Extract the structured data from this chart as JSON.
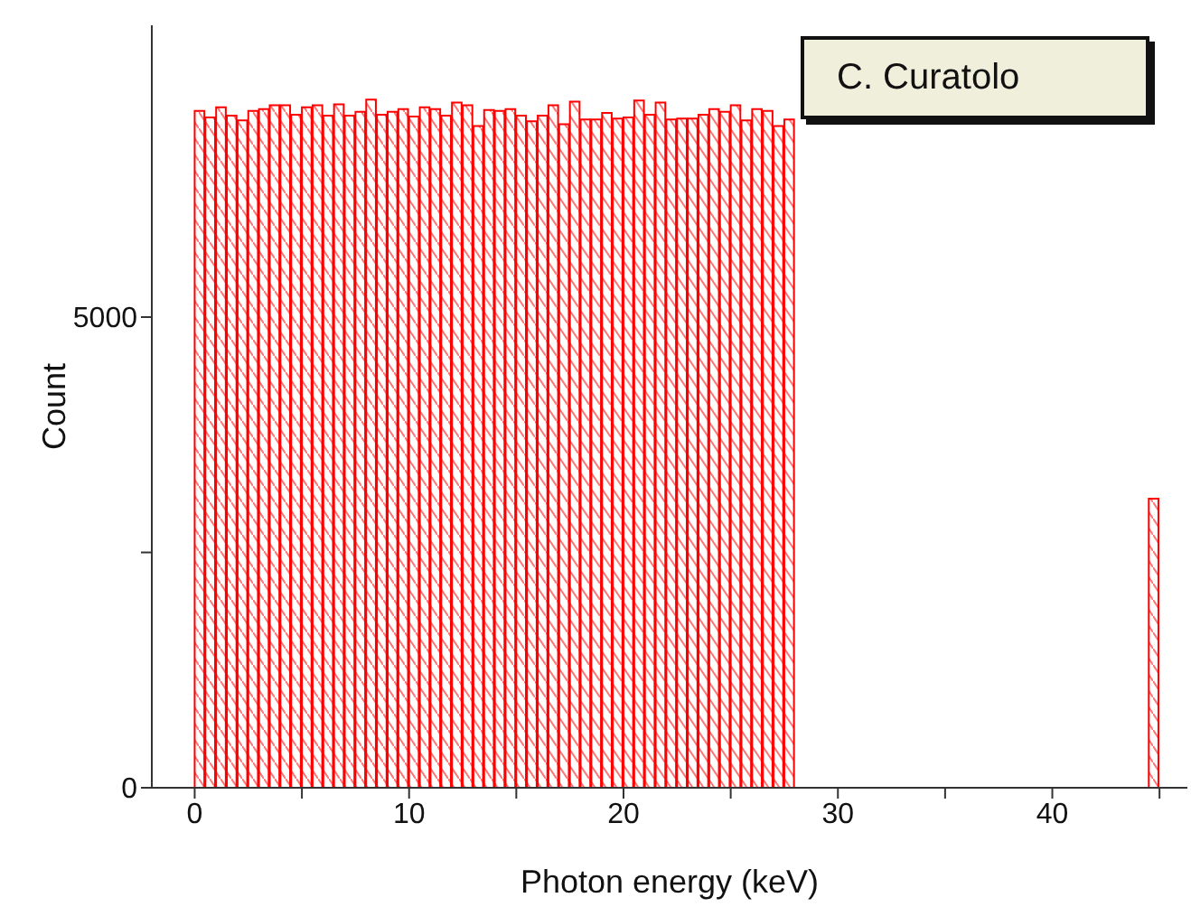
{
  "chart_data": {
    "type": "histogram",
    "xlabel": "Photon energy (keV)",
    "ylabel": "Count",
    "color": "#ff0000",
    "bins": [
      0,
      0.5,
      1,
      1.5,
      2,
      2.5,
      3,
      3.5,
      4,
      4.5,
      5,
      5.5,
      6,
      6.5,
      7,
      7.5,
      8,
      8.5,
      9,
      9.5,
      10,
      10.5,
      11,
      11.5,
      12,
      12.5,
      13,
      13.5,
      14,
      14.5,
      15,
      15.5,
      16,
      16.5,
      17,
      17.5,
      18,
      18.5,
      19,
      19.5,
      20,
      20.5,
      21,
      21.5,
      22,
      22.5,
      23,
      23.5,
      24,
      24.5,
      25,
      25.5,
      26,
      26.5,
      27,
      27.5,
      28,
      28.5,
      29,
      29.5,
      30,
      30.5,
      31,
      31.5,
      32,
      32.5,
      33,
      33.5,
      34,
      34.5,
      35,
      35.5,
      36,
      36.5,
      37,
      37.5,
      38,
      38.5,
      39,
      39.5,
      40,
      40.5,
      41,
      41.5,
      42,
      42.5,
      43,
      43.5,
      44,
      44.5,
      45
    ],
    "values": [
      7190,
      7120,
      7230,
      7140,
      7090,
      7190,
      7210,
      7250,
      7250,
      7150,
      7230,
      7250,
      7140,
      7260,
      7140,
      7180,
      7310,
      7150,
      7180,
      7210,
      7130,
      7230,
      7210,
      7140,
      7280,
      7250,
      7030,
      7200,
      7190,
      7210,
      7140,
      7080,
      7140,
      7250,
      7050,
      7290,
      7100,
      7100,
      7170,
      7110,
      7120,
      7300,
      7150,
      7280,
      7100,
      7110,
      7110,
      7150,
      7210,
      7180,
      7250,
      7090,
      7210,
      7190,
      7030,
      7100,
      null,
      null,
      null,
      null,
      null,
      null,
      null,
      null,
      null,
      null,
      null,
      null,
      null,
      null,
      null,
      null,
      null,
      null,
      null,
      null,
      null,
      null,
      null,
      null,
      null,
      null,
      null,
      null,
      null,
      null,
      null,
      null,
      null,
      3070
    ],
    "xlim": [
      -2,
      46.3
    ],
    "xticks": [
      0,
      {
        "value": 5,
        "label": null
      },
      10,
      {
        "value": 15,
        "label": null
      },
      20,
      {
        "value": 25,
        "label": null
      },
      30,
      {
        "value": 35,
        "label": null
      },
      40,
      {
        "value": 45,
        "label": null
      }
    ],
    "ylim": [
      0,
      8100
    ],
    "yticks": [
      0,
      {
        "value": 2500,
        "label": null
      },
      5000
    ],
    "annotations": [
      "C. Curatolo"
    ]
  }
}
